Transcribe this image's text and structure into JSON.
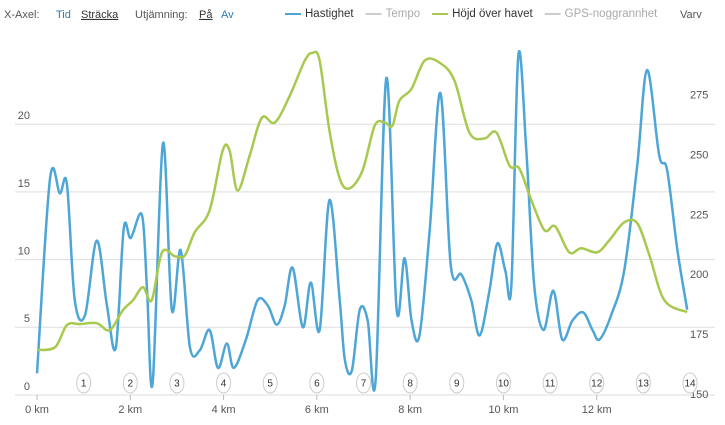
{
  "controls": {
    "x_axis_label": "X-Axel:",
    "x_axis_options": [
      "Tid",
      "Sträcka"
    ],
    "smoothing_label": "Utjämning:",
    "smoothing_options": [
      "På",
      "Av"
    ]
  },
  "chart_data": {
    "type": "line",
    "series": [
      {
        "name": "Hastighet",
        "color": "#4ea6d6",
        "visible": true,
        "axis": "y",
        "x": [
          0,
          0.28,
          0.49,
          0.64,
          0.81,
          1.03,
          1.28,
          1.5,
          1.69,
          1.86,
          2.01,
          2.25,
          2.36,
          2.48,
          2.7,
          2.89,
          3.08,
          3.28,
          3.49,
          3.7,
          3.88,
          4.07,
          4.22,
          4.48,
          4.73,
          4.95,
          5.14,
          5.31,
          5.48,
          5.7,
          5.87,
          6.06,
          6.27,
          6.49,
          6.6,
          6.75,
          6.92,
          7.09,
          7.26,
          7.49,
          7.71,
          7.88,
          8.03,
          8.2,
          8.42,
          8.65,
          8.87,
          9.1,
          9.31,
          9.49,
          9.7,
          9.87,
          10.04,
          10.17,
          10.32,
          10.49,
          10.66,
          10.86,
          11.07,
          11.26,
          11.48,
          11.71,
          11.91,
          12.06,
          12.31,
          12.59,
          12.87,
          13.08,
          13.34,
          13.51,
          13.73,
          13.94
        ],
        "values": [
          1.6,
          16,
          14.9,
          15.6,
          7,
          5.9,
          11.4,
          6.6,
          3.5,
          12.3,
          11.6,
          13.3,
          7.7,
          0.9,
          18.6,
          6.3,
          10.7,
          3.5,
          3.3,
          4.8,
          2,
          3.8,
          2,
          4.1,
          7,
          6.6,
          5.2,
          6.6,
          9.4,
          5,
          8.3,
          4.8,
          14.4,
          7,
          2.6,
          1.8,
          6.3,
          5.5,
          1.1,
          23.4,
          6.3,
          10.1,
          5.5,
          4.4,
          12.2,
          22.3,
          9.6,
          8.9,
          7,
          4.4,
          7.7,
          11.2,
          9.2,
          8.1,
          25.1,
          18.1,
          8.1,
          4.8,
          7.7,
          4.1,
          5.5,
          6.1,
          4.8,
          4.1,
          5.9,
          9.2,
          17,
          24,
          17.7,
          16.6,
          10.7,
          6.3
        ]
      },
      {
        "name": "Tempo",
        "color": "#aaaaaa",
        "visible": false,
        "x": [],
        "values": []
      },
      {
        "name": "Höjd över havet",
        "color": "#a8c94f",
        "visible": true,
        "axis": "y2",
        "x": [
          0,
          0.39,
          0.64,
          0.92,
          1.28,
          1.56,
          1.84,
          2.06,
          2.27,
          2.46,
          2.68,
          2.96,
          3.17,
          3.38,
          3.7,
          3.98,
          4.13,
          4.3,
          4.56,
          4.82,
          5.1,
          5.42,
          5.74,
          5.91,
          6.06,
          6.27,
          6.49,
          6.7,
          6.98,
          7.24,
          7.45,
          7.62,
          7.77,
          8.03,
          8.31,
          8.63,
          8.95,
          9.27,
          9.59,
          9.85,
          10.13,
          10.34,
          10.6,
          10.88,
          11.11,
          11.41,
          11.67,
          12.01,
          12.27,
          12.59,
          12.87,
          13.13,
          13.45,
          13.94
        ],
        "values": [
          168.8,
          170,
          179.2,
          179.6,
          180,
          177.1,
          185.4,
          189.6,
          195,
          189.6,
          209.6,
          207.9,
          208.3,
          217.9,
          227.1,
          252,
          252,
          235.4,
          250,
          265.8,
          263.8,
          275,
          289.6,
          292.9,
          289.6,
          260.4,
          240.4,
          236.3,
          243.8,
          262.5,
          263.8,
          262.5,
          272.9,
          277.9,
          289.6,
          288.8,
          281.3,
          259.6,
          257.1,
          259.6,
          245.8,
          244.6,
          231.3,
          218.8,
          220.4,
          209.6,
          211.3,
          209.6,
          214.6,
          222.1,
          221.7,
          208.3,
          189.6,
          184.6
        ]
      },
      {
        "name": "GPS-noggrannhet",
        "color": "#aaaaaa",
        "visible": false,
        "x": [],
        "values": []
      }
    ],
    "xlim": [
      0,
      14
    ],
    "xticks": [
      {
        "value": 0,
        "label": "0 km"
      },
      {
        "value": 2,
        "label": "2 km"
      },
      {
        "value": 4,
        "label": "4 km"
      },
      {
        "value": 6,
        "label": "6 km"
      },
      {
        "value": 8,
        "label": "8 km"
      },
      {
        "value": 10,
        "label": "10 km"
      },
      {
        "value": 12,
        "label": "12 km"
      }
    ],
    "ylim": [
      0,
      26
    ],
    "yticks": [
      0,
      5,
      10,
      15,
      20
    ],
    "y2lim": [
      150,
      297
    ],
    "y2ticks": [
      150,
      175,
      200,
      225,
      250,
      275
    ],
    "grid": true,
    "laps_label": "Varv",
    "laps": [
      1,
      2,
      3,
      4,
      5,
      6,
      7,
      8,
      9,
      10,
      11,
      12,
      13,
      14
    ]
  }
}
